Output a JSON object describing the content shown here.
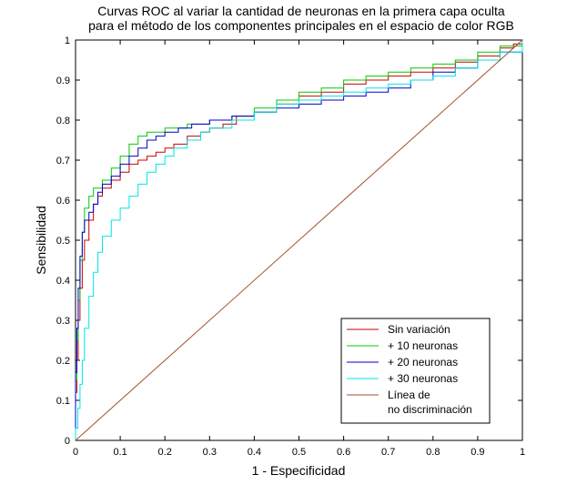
{
  "chart_data": {
    "type": "line",
    "title": "Curvas ROC al variar la cantidad de neuronas en la primera capa oculta",
    "subtitle": "para el método de los componentes principales en el espacio de color RGB",
    "xlabel": "1 - Especificidad",
    "ylabel": "Sensibilidad",
    "xlim": [
      0,
      1
    ],
    "ylim": [
      0,
      1
    ],
    "x_ticks": [
      0,
      0.1,
      0.2,
      0.3,
      0.4,
      0.5,
      0.6,
      0.7,
      0.8,
      0.9,
      1
    ],
    "x_tick_labels": [
      "0",
      "0.1",
      "0.2",
      "0.3",
      "0.4",
      "0.5",
      "0.6",
      "0.7",
      "0.8",
      "0.9",
      "1"
    ],
    "y_ticks": [
      0,
      0.1,
      0.2,
      0.3,
      0.4,
      0.5,
      0.6,
      0.7,
      0.8,
      0.9,
      1
    ],
    "y_tick_labels": [
      "0",
      "0.1",
      "0.2",
      "0.3",
      "0.4",
      "0.5",
      "0.6",
      "0.7",
      "0.8",
      "0.9",
      "1"
    ],
    "grid": false,
    "legend_position": "bottom-right",
    "series": [
      {
        "name": "Sin variación",
        "color": "#cc0000",
        "points": [
          [
            0,
            0
          ],
          [
            0,
            0.12
          ],
          [
            0.003,
            0.2
          ],
          [
            0.006,
            0.3
          ],
          [
            0.01,
            0.38
          ],
          [
            0.015,
            0.45
          ],
          [
            0.02,
            0.5
          ],
          [
            0.03,
            0.55
          ],
          [
            0.04,
            0.59
          ],
          [
            0.05,
            0.61
          ],
          [
            0.06,
            0.63
          ],
          [
            0.08,
            0.65
          ],
          [
            0.1,
            0.67
          ],
          [
            0.12,
            0.69
          ],
          [
            0.14,
            0.7
          ],
          [
            0.16,
            0.71
          ],
          [
            0.18,
            0.72
          ],
          [
            0.2,
            0.73
          ],
          [
            0.22,
            0.74
          ],
          [
            0.25,
            0.76
          ],
          [
            0.28,
            0.77
          ],
          [
            0.3,
            0.78
          ],
          [
            0.33,
            0.79
          ],
          [
            0.36,
            0.81
          ],
          [
            0.4,
            0.82
          ],
          [
            0.45,
            0.84
          ],
          [
            0.5,
            0.86
          ],
          [
            0.55,
            0.87
          ],
          [
            0.6,
            0.89
          ],
          [
            0.65,
            0.9
          ],
          [
            0.7,
            0.91
          ],
          [
            0.75,
            0.92
          ],
          [
            0.8,
            0.93
          ],
          [
            0.85,
            0.945
          ],
          [
            0.9,
            0.96
          ],
          [
            0.95,
            0.98
          ],
          [
            0.98,
            0.99
          ],
          [
            1,
            1
          ]
        ]
      },
      {
        "name": "+ 10 neuronas",
        "color": "#00cc00",
        "points": [
          [
            0,
            0
          ],
          [
            0,
            0.15
          ],
          [
            0.003,
            0.25
          ],
          [
            0.006,
            0.35
          ],
          [
            0.01,
            0.45
          ],
          [
            0.015,
            0.52
          ],
          [
            0.02,
            0.58
          ],
          [
            0.03,
            0.61
          ],
          [
            0.04,
            0.63
          ],
          [
            0.06,
            0.65
          ],
          [
            0.08,
            0.68
          ],
          [
            0.1,
            0.71
          ],
          [
            0.12,
            0.74
          ],
          [
            0.14,
            0.76
          ],
          [
            0.16,
            0.77
          ],
          [
            0.2,
            0.78
          ],
          [
            0.25,
            0.79
          ],
          [
            0.3,
            0.8
          ],
          [
            0.35,
            0.81
          ],
          [
            0.4,
            0.83
          ],
          [
            0.45,
            0.85
          ],
          [
            0.5,
            0.87
          ],
          [
            0.55,
            0.88
          ],
          [
            0.6,
            0.9
          ],
          [
            0.65,
            0.91
          ],
          [
            0.7,
            0.92
          ],
          [
            0.75,
            0.93
          ],
          [
            0.8,
            0.94
          ],
          [
            0.85,
            0.95
          ],
          [
            0.9,
            0.97
          ],
          [
            0.95,
            0.985
          ],
          [
            1,
            1
          ]
        ]
      },
      {
        "name": "+ 20 neuronas",
        "color": "#0000cc",
        "points": [
          [
            0,
            0
          ],
          [
            0,
            0.17
          ],
          [
            0.003,
            0.28
          ],
          [
            0.006,
            0.38
          ],
          [
            0.01,
            0.46
          ],
          [
            0.015,
            0.52
          ],
          [
            0.02,
            0.55
          ],
          [
            0.03,
            0.57
          ],
          [
            0.04,
            0.59
          ],
          [
            0.05,
            0.62
          ],
          [
            0.06,
            0.64
          ],
          [
            0.08,
            0.66
          ],
          [
            0.1,
            0.69
          ],
          [
            0.12,
            0.71
          ],
          [
            0.14,
            0.73
          ],
          [
            0.16,
            0.75
          ],
          [
            0.18,
            0.76
          ],
          [
            0.2,
            0.77
          ],
          [
            0.23,
            0.78
          ],
          [
            0.26,
            0.79
          ],
          [
            0.3,
            0.8
          ],
          [
            0.35,
            0.81
          ],
          [
            0.4,
            0.82
          ],
          [
            0.45,
            0.83
          ],
          [
            0.5,
            0.84
          ],
          [
            0.55,
            0.85
          ],
          [
            0.6,
            0.86
          ],
          [
            0.65,
            0.87
          ],
          [
            0.7,
            0.88
          ],
          [
            0.75,
            0.9
          ],
          [
            0.8,
            0.92
          ],
          [
            0.85,
            0.93
          ],
          [
            0.9,
            0.95
          ],
          [
            0.95,
            0.97
          ],
          [
            1,
            1
          ]
        ]
      },
      {
        "name": "+ 30 neuronas",
        "color": "#00e5e5",
        "points": [
          [
            0,
            0
          ],
          [
            0,
            0.03
          ],
          [
            0.005,
            0.08
          ],
          [
            0.01,
            0.14
          ],
          [
            0.015,
            0.2
          ],
          [
            0.02,
            0.28
          ],
          [
            0.03,
            0.36
          ],
          [
            0.04,
            0.42
          ],
          [
            0.05,
            0.47
          ],
          [
            0.06,
            0.51
          ],
          [
            0.08,
            0.55
          ],
          [
            0.1,
            0.58
          ],
          [
            0.12,
            0.61
          ],
          [
            0.14,
            0.64
          ],
          [
            0.16,
            0.67
          ],
          [
            0.18,
            0.69
          ],
          [
            0.2,
            0.71
          ],
          [
            0.22,
            0.73
          ],
          [
            0.25,
            0.75
          ],
          [
            0.28,
            0.77
          ],
          [
            0.3,
            0.78
          ],
          [
            0.35,
            0.8
          ],
          [
            0.4,
            0.82
          ],
          [
            0.45,
            0.84
          ],
          [
            0.5,
            0.85
          ],
          [
            0.55,
            0.86
          ],
          [
            0.6,
            0.87
          ],
          [
            0.65,
            0.88
          ],
          [
            0.7,
            0.89
          ],
          [
            0.75,
            0.9
          ],
          [
            0.8,
            0.91
          ],
          [
            0.85,
            0.93
          ],
          [
            0.9,
            0.95
          ],
          [
            0.95,
            0.97
          ],
          [
            1,
            1
          ]
        ]
      },
      {
        "name": "Línea de",
        "name_line2": "no discriminación",
        "color": "#a0522d",
        "points": [
          [
            0,
            0
          ],
          [
            1,
            1
          ]
        ]
      }
    ]
  }
}
